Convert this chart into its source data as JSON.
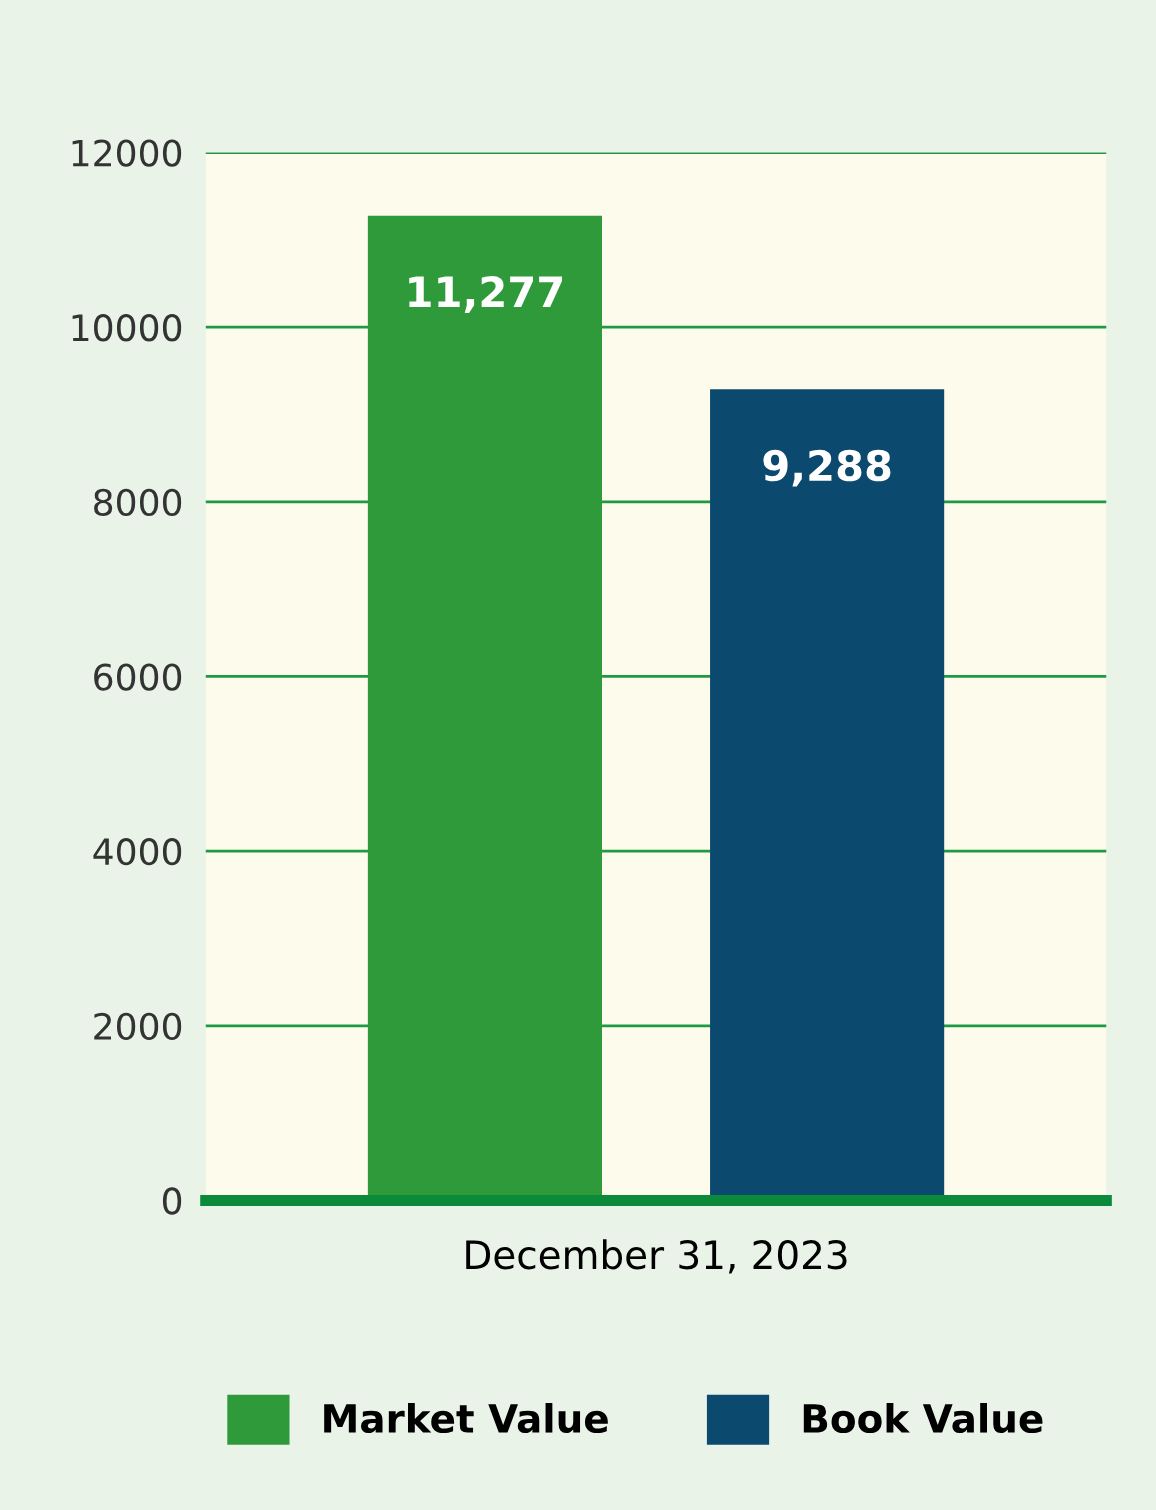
{
  "chart_data": {
    "type": "bar",
    "categories": [
      "December 31, 2023"
    ],
    "series": [
      {
        "name": "Market Value",
        "color": "#2f9a3a",
        "values": [
          11277
        ],
        "value_labels": [
          "11,277"
        ]
      },
      {
        "name": "Book Value",
        "color": "#0b4a6e",
        "values": [
          9288
        ],
        "value_labels": [
          "9,288"
        ]
      }
    ],
    "ylim": [
      0,
      12000
    ],
    "yticks": [
      0,
      2000,
      4000,
      6000,
      8000,
      10000,
      12000
    ],
    "grid": "y",
    "legend": "bottom"
  }
}
